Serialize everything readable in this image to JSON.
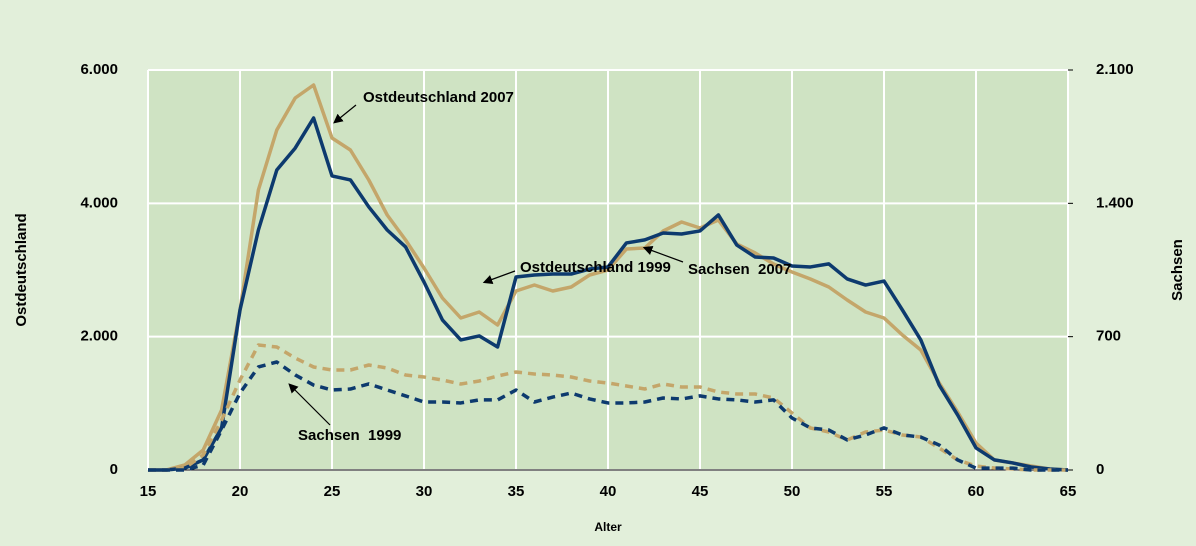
{
  "chart_data": {
    "type": "line",
    "x_label": "Alter",
    "y_label": "Ostdeutschland",
    "y2_label": "Sachsen",
    "x": [
      15,
      16,
      17,
      18,
      19,
      20,
      21,
      22,
      23,
      24,
      25,
      26,
      27,
      28,
      29,
      30,
      31,
      32,
      33,
      34,
      35,
      36,
      37,
      38,
      39,
      40,
      41,
      42,
      43,
      44,
      45,
      46,
      47,
      48,
      49,
      50,
      51,
      52,
      53,
      54,
      55,
      56,
      57,
      58,
      59,
      60,
      61,
      62,
      63,
      64,
      65
    ],
    "xlim": [
      15,
      65
    ],
    "xticks": [
      15,
      20,
      25,
      30,
      35,
      40,
      45,
      50,
      55,
      60,
      65
    ],
    "ylim": [
      0,
      6000
    ],
    "yticks": [
      0,
      {
        "value": 2000,
        "label": "2.000"
      },
      {
        "value": 4000,
        "label": "4.000"
      },
      {
        "value": 6000,
        "label": "6.000"
      }
    ],
    "y2lim": [
      0,
      2100
    ],
    "y2ticks": [
      0,
      700,
      {
        "value": 1400,
        "label": "1.400"
      },
      {
        "value": 2100,
        "label": "2.100"
      }
    ],
    "grid": true,
    "series": [
      {
        "name": "Ostdeutschland 2007",
        "color": "#c4a66a",
        "dashed": false,
        "values": [
          0,
          0,
          75,
          300,
          900,
          2400,
          4200,
          5100,
          5580,
          5775,
          4980,
          4800,
          4350,
          3825,
          3450,
          3030,
          2580,
          2280,
          2370,
          2175,
          2685,
          2775,
          2685,
          2745,
          2925,
          3000,
          3315,
          3330,
          3585,
          3720,
          3630,
          3750,
          3390,
          3255,
          3090,
          2970,
          2865,
          2745,
          2550,
          2370,
          2280,
          2025,
          1800,
          1305,
          870,
          405,
          150,
          105,
          60,
          15,
          0
        ]
      },
      {
        "name": "Sachsen  2007",
        "color": "#0d3a6e",
        "dashed": false,
        "axis": "y2",
        "values": [
          0,
          0,
          10,
          53,
          221,
          840,
          1260,
          1575,
          1690,
          1848,
          1544,
          1523,
          1381,
          1260,
          1171,
          987,
          788,
          683,
          704,
          646,
          1013,
          1024,
          1029,
          1029,
          1055,
          1066,
          1192,
          1208,
          1244,
          1239,
          1255,
          1339,
          1181,
          1118,
          1113,
          1071,
          1066,
          1082,
          1003,
          971,
          992,
          840,
          683,
          446,
          289,
          116,
          53,
          37,
          16,
          5,
          0
        ]
      },
      {
        "name": "Ostdeutschland 1999",
        "color": "#c4a66a",
        "dashed": true,
        "values": [
          0,
          0,
          30,
          225,
          750,
          1350,
          1875,
          1845,
          1680,
          1545,
          1500,
          1500,
          1575,
          1530,
          1425,
          1395,
          1350,
          1290,
          1335,
          1410,
          1470,
          1440,
          1425,
          1395,
          1335,
          1305,
          1260,
          1215,
          1290,
          1245,
          1245,
          1170,
          1140,
          1140,
          1080,
          855,
          630,
          570,
          450,
          570,
          600,
          525,
          495,
          330,
          150,
          60,
          30,
          15,
          0,
          0,
          0
        ]
      },
      {
        "name": "Sachsen  1999",
        "color": "#0d3a6e",
        "dashed": true,
        "axis": "y2",
        "values": [
          0,
          0,
          0,
          26,
          210,
          404,
          541,
          567,
          499,
          446,
          420,
          425,
          452,
          420,
          389,
          357,
          357,
          352,
          368,
          368,
          420,
          357,
          383,
          404,
          373,
          352,
          352,
          357,
          378,
          373,
          389,
          373,
          368,
          357,
          368,
          273,
          221,
          210,
          158,
          184,
          221,
          184,
          173,
          131,
          53,
          10,
          10,
          10,
          0,
          0,
          0
        ]
      }
    ]
  }
}
